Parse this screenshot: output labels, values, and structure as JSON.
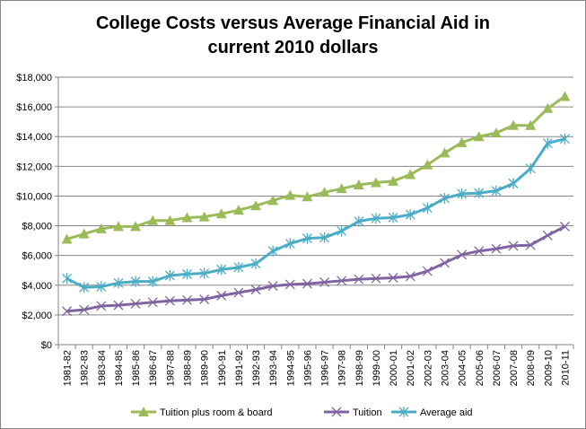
{
  "chart_data": {
    "type": "line",
    "title_line1": "College Costs versus Average Financial Aid in",
    "title_line2": "current 2010 dollars",
    "xlabel": "",
    "ylabel": "",
    "ylim": [
      0,
      18000
    ],
    "yticks": [
      "$0",
      "$2,000",
      "$4,000",
      "$6,000",
      "$8,000",
      "$10,000",
      "$12,000",
      "$14,000",
      "$16,000",
      "$18,000"
    ],
    "grid": true,
    "legend": "bottom",
    "categories": [
      "1981-82",
      "1982-83",
      "1983-84",
      "1984-85",
      "1985-86",
      "1986-87",
      "1987-88",
      "1988-89",
      "1989-90",
      "1990-91",
      "1991-92",
      "1992-93",
      "1993-94",
      "1994-95",
      "1995-96",
      "1996-97",
      "1997-98",
      "1998-99",
      "1999-00",
      "2000-01",
      "2001-02",
      "2002-03",
      "2003-04",
      "2004-05",
      "2005-06",
      "2006-07",
      "2007-08",
      "2008-09",
      "2009-10",
      "2010-11"
    ],
    "series": [
      {
        "name": "Tuition plus room & board",
        "color": "#9BBB59",
        "marker": "triangle",
        "values": [
          7100,
          7450,
          7800,
          7950,
          7950,
          8350,
          8350,
          8550,
          8600,
          8800,
          9050,
          9350,
          9700,
          10050,
          9950,
          10250,
          10500,
          10750,
          10900,
          11000,
          11450,
          12100,
          12900,
          13600,
          14000,
          14250,
          14750,
          14750,
          15900,
          16700
        ]
      },
      {
        "name": "Tuition",
        "color": "#8064A2",
        "marker": "x",
        "values": [
          2250,
          2350,
          2600,
          2650,
          2750,
          2850,
          2950,
          3000,
          3050,
          3300,
          3500,
          3700,
          3950,
          4050,
          4100,
          4200,
          4300,
          4400,
          4450,
          4500,
          4600,
          4950,
          5500,
          6050,
          6300,
          6450,
          6650,
          6700,
          7350,
          7950
        ]
      },
      {
        "name": "Average aid",
        "color": "#4BACC6",
        "marker": "star",
        "values": [
          4450,
          3850,
          3900,
          4150,
          4250,
          4250,
          4650,
          4750,
          4800,
          5050,
          5200,
          5450,
          6300,
          6800,
          7150,
          7200,
          7650,
          8300,
          8500,
          8550,
          8750,
          9200,
          9850,
          10150,
          10200,
          10350,
          10850,
          11850,
          13550,
          13850
        ]
      }
    ]
  }
}
